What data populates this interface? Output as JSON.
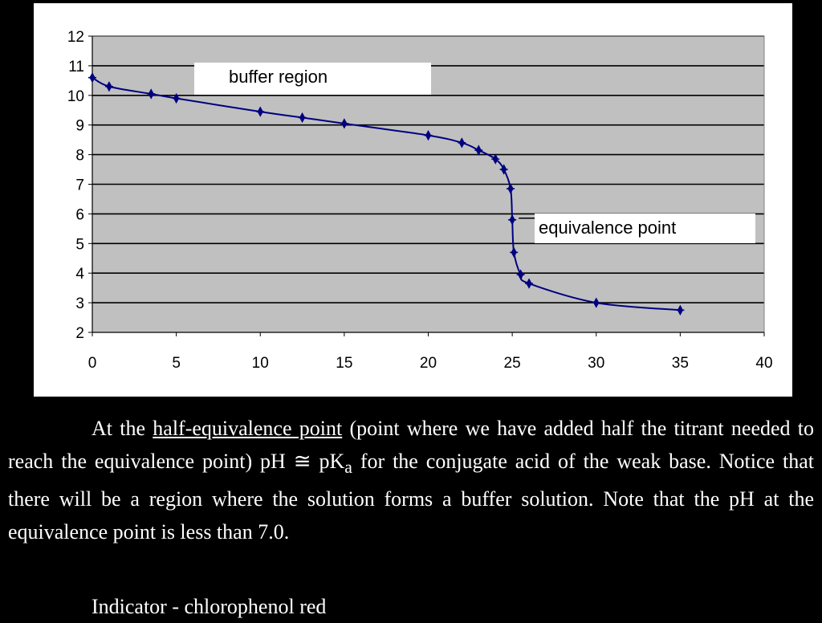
{
  "chart_data": {
    "type": "line",
    "title": "",
    "xlabel": "",
    "ylabel": "",
    "xlim": [
      0,
      40
    ],
    "ylim": [
      2,
      12
    ],
    "xticks": [
      0,
      5,
      10,
      15,
      20,
      25,
      30,
      35,
      40
    ],
    "yticks": [
      2,
      3,
      4,
      5,
      6,
      7,
      8,
      9,
      10,
      11,
      12
    ],
    "grid": "horizontal",
    "legend": "none",
    "background_color": "#c0c0c0",
    "series_color": "#000080",
    "series": [
      {
        "x": [
          0,
          1,
          3.5,
          5,
          10,
          12.5,
          15,
          20,
          22,
          23,
          24,
          24.5,
          24.9,
          25,
          25.1,
          25.5,
          26,
          30,
          35
        ],
        "y": [
          10.6,
          10.3,
          10.05,
          9.9,
          9.45,
          9.25,
          9.05,
          8.65,
          8.4,
          8.15,
          7.85,
          7.5,
          6.85,
          5.8,
          4.7,
          3.95,
          3.65,
          3.0,
          2.75
        ]
      }
    ],
    "annotations": [
      {
        "text": "buffer region"
      },
      {
        "text": "equivalence point"
      }
    ]
  },
  "text": {
    "para1_before": "At the ",
    "para1_link": "half-equivalence point",
    "para1_after_link": " (point where we have added half the titrant needed to reach the equivalence point) pH ≅ pK",
    "para1_subscript": "a",
    "para1_after_sub": " for the conjugate acid of the weak base.  Notice that there will be a region where the solution forms a buffer solution.  Note that the pH at the equivalence point is less than 7.0.",
    "indicator": "Indicator - chlorophenol red"
  }
}
